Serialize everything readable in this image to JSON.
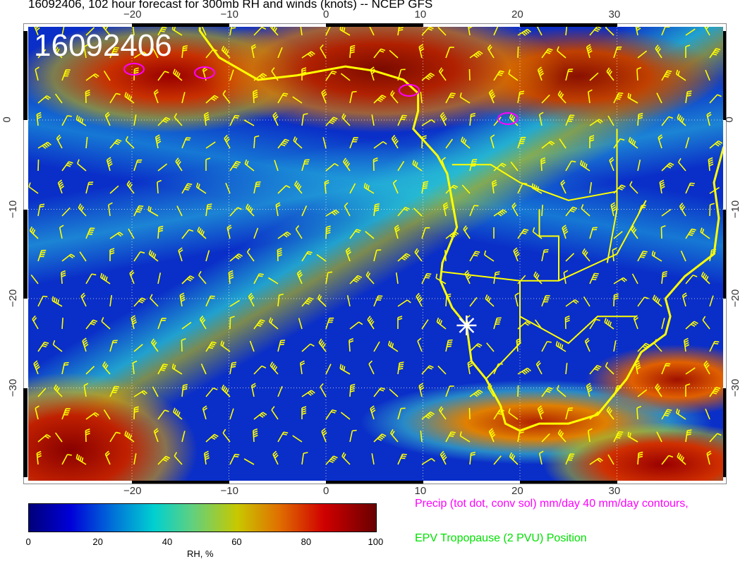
{
  "title": "16092406, 102 hour forecast for 300mb RH and winds (knots) -- NCEP GFS",
  "stamp": "16092406",
  "map": {
    "lon_range": [
      -31,
      41
    ],
    "lat_range": [
      -40.4,
      10.4
    ],
    "lon_ticks": [
      "−20",
      "−10",
      "0",
      "10",
      "20",
      "30"
    ],
    "lat_ticks": [
      "0",
      "−10",
      "−20",
      "−30"
    ],
    "colors": {
      "coastline": "#ffff00",
      "wind_barbs": "#ffff00",
      "precip_contours": "#ff00ff",
      "marker": "#ffffff"
    },
    "marker": {
      "icon": "star-icon",
      "lon": 14.5,
      "lat": -23
    }
  },
  "colorbar": {
    "label": "RH, %",
    "ticks": [
      "0",
      "20",
      "40",
      "60",
      "80",
      "100"
    ],
    "range": [
      0,
      100
    ]
  },
  "legend": {
    "precip": "Precip (tot dot, conv sol) mm/day 40 mm/day contours,",
    "epv": "EPV Tropopause (2 PVU) Position"
  }
}
